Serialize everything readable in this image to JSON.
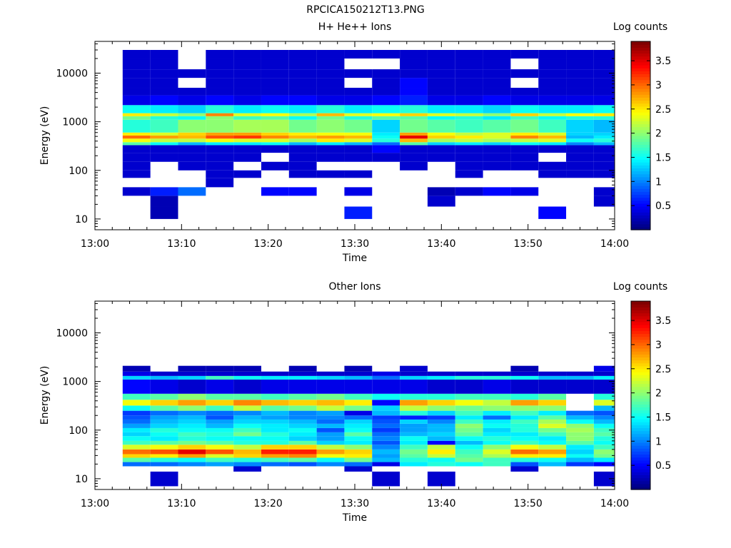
{
  "figure_title": "RPCICA150212T13.PNG",
  "chart_data": [
    {
      "type": "heatmap",
      "title": "H+ He++ Ions",
      "xlabel": "Time",
      "ylabel": "Energy (eV)",
      "colorbar_label": "Log counts",
      "x_ticks": [
        "13:00",
        "13:10",
        "13:20",
        "13:30",
        "13:40",
        "13:50",
        "14:00"
      ],
      "xlim_minutes": [
        0,
        60
      ],
      "y_scale": "log",
      "ylim": [
        6,
        45000
      ],
      "y_ticks": [
        10,
        100,
        1000,
        10000
      ],
      "y_tick_labels": [
        "10",
        "100",
        "1000",
        "10000"
      ],
      "clim": [
        0,
        3.9
      ],
      "colorbar_ticks": [
        0.5,
        1,
        1.5,
        2,
        2.5,
        3,
        3.5
      ],
      "colorbar_tick_labels": [
        "0.5",
        "1",
        "1.5",
        "2",
        "2.5",
        "3",
        "3.5"
      ],
      "colormap": "jet",
      "time_bins_minutes": [
        3.2,
        6.4,
        9.6,
        12.8,
        16.0,
        19.2,
        22.4,
        25.6,
        28.8,
        32.0,
        35.2,
        38.4,
        41.6,
        44.8,
        48.0,
        51.2,
        54.4,
        57.6,
        60.8
      ],
      "energy_bins_eV": [
        10,
        18,
        30,
        45,
        70,
        100,
        150,
        230,
        330,
        380,
        450,
        520,
        600,
        1100,
        1300,
        1500,
        2200,
        3500,
        5000,
        8000,
        12000,
        20000,
        30000
      ],
      "z_log_counts": [
        [
          null,
          0.2,
          null,
          null,
          null,
          null,
          null,
          null,
          0.6,
          null,
          null,
          null,
          null,
          null,
          null,
          0.5,
          null,
          null
        ],
        [
          null,
          0.2,
          null,
          null,
          null,
          null,
          null,
          null,
          null,
          null,
          null,
          0.3,
          null,
          null,
          null,
          null,
          null,
          0.3
        ],
        [
          0.3,
          0.6,
          0.9,
          null,
          null,
          0.5,
          0.5,
          null,
          0.4,
          null,
          null,
          0.2,
          0.3,
          0.5,
          0.4,
          null,
          null,
          0.3
        ],
        [
          null,
          null,
          null,
          0.3,
          null,
          null,
          null,
          null,
          null,
          null,
          null,
          null,
          null,
          null,
          null,
          null,
          null,
          null
        ],
        [
          0.3,
          null,
          null,
          0.3,
          0.3,
          null,
          0.3,
          0.3,
          0.3,
          null,
          null,
          null,
          0.3,
          null,
          null,
          0.3,
          0.3,
          0.3
        ],
        [
          0.3,
          null,
          0.3,
          0.3,
          null,
          0.3,
          0.3,
          null,
          null,
          null,
          0.3,
          null,
          0.3,
          0.3,
          0.3,
          0.3,
          0.3,
          0.3
        ],
        [
          0.3,
          0.3,
          0.3,
          0.3,
          0.3,
          null,
          0.3,
          0.3,
          0.3,
          0.3,
          0.3,
          0.3,
          0.3,
          0.3,
          0.3,
          null,
          0.3,
          0.3
        ],
        [
          0.3,
          0.3,
          0.3,
          0.3,
          0.3,
          0.3,
          0.3,
          0.3,
          0.3,
          0.5,
          0.3,
          0.3,
          0.3,
          0.3,
          0.3,
          0.3,
          0.3,
          0.3
        ],
        [
          1.8,
          1.5,
          1.2,
          1.4,
          1.4,
          1.5,
          1.2,
          1.4,
          1.2,
          0.9,
          1.8,
          1.3,
          1.4,
          1.3,
          1.5,
          1.4,
          1.0,
          1.2
        ],
        [
          2.4,
          2.2,
          2.2,
          2.4,
          2.3,
          2.3,
          2.1,
          2.5,
          2.3,
          1.6,
          2.7,
          2.1,
          2.2,
          2.1,
          2.2,
          2.3,
          1.5,
          1.6
        ],
        [
          3.0,
          2.8,
          2.7,
          3.1,
          3.2,
          2.9,
          2.7,
          2.8,
          2.7,
          1.5,
          3.5,
          2.6,
          2.5,
          2.3,
          2.9,
          2.7,
          1.2,
          1.4
        ],
        [
          2.5,
          2.3,
          2.6,
          2.8,
          2.8,
          2.6,
          2.5,
          2.4,
          2.4,
          1.4,
          2.8,
          2.4,
          2.2,
          2.3,
          2.5,
          2.3,
          1.3,
          1.3
        ],
        [
          1.6,
          1.7,
          2.0,
          2.0,
          2.1,
          2.1,
          1.9,
          2.0,
          1.9,
          1.3,
          1.9,
          1.8,
          1.7,
          1.8,
          1.9,
          1.7,
          1.3,
          1.2
        ],
        [
          1.9,
          1.6,
          1.5,
          2.0,
          1.7,
          1.8,
          1.5,
          1.9,
          1.6,
          1.8,
          1.8,
          1.5,
          1.6,
          1.4,
          1.7,
          1.5,
          1.6,
          1.6
        ],
        [
          2.5,
          2.2,
          2.0,
          2.9,
          2.3,
          2.4,
          2.1,
          2.7,
          2.3,
          2.4,
          2.6,
          2.3,
          2.2,
          2.0,
          2.6,
          2.2,
          2.4,
          2.5
        ],
        [
          1.5,
          1.4,
          1.3,
          1.6,
          1.4,
          1.5,
          1.4,
          1.6,
          1.4,
          1.5,
          1.6,
          1.4,
          1.4,
          1.3,
          1.5,
          1.4,
          1.4,
          1.5
        ],
        [
          0.4,
          0.5,
          0.4,
          0.5,
          0.4,
          0.5,
          0.5,
          0.4,
          0.4,
          0.5,
          0.6,
          0.4,
          0.4,
          0.5,
          0.4,
          0.4,
          0.4,
          0.4
        ],
        [
          0.3,
          0.3,
          0.3,
          0.3,
          0.3,
          0.3,
          0.3,
          0.3,
          0.3,
          0.3,
          0.5,
          0.3,
          0.3,
          0.3,
          0.3,
          0.3,
          0.3,
          0.3
        ],
        [
          0.3,
          0.3,
          null,
          0.3,
          0.3,
          0.3,
          0.3,
          0.3,
          null,
          0.3,
          0.5,
          0.3,
          0.3,
          0.3,
          null,
          0.3,
          0.3,
          0.3
        ],
        [
          0.3,
          0.3,
          0.3,
          0.3,
          0.3,
          0.3,
          0.3,
          0.3,
          0.3,
          0.3,
          0.3,
          0.3,
          0.3,
          0.3,
          0.3,
          0.3,
          0.3,
          0.3
        ],
        [
          0.3,
          0.3,
          null,
          0.3,
          0.3,
          0.3,
          0.3,
          0.3,
          null,
          null,
          0.3,
          0.3,
          0.3,
          0.3,
          null,
          0.3,
          0.3,
          0.3
        ],
        [
          0.3,
          0.3,
          null,
          0.3,
          0.3,
          0.3,
          0.3,
          0.3,
          0.3,
          0.3,
          0.3,
          0.3,
          0.3,
          0.3,
          0.3,
          0.3,
          0.3,
          0.3
        ]
      ]
    },
    {
      "type": "heatmap",
      "title": "Other Ions",
      "xlabel": "Time",
      "ylabel": "Energy (eV)",
      "colorbar_label": "Log counts",
      "x_ticks": [
        "13:00",
        "13:10",
        "13:20",
        "13:30",
        "13:40",
        "13:50",
        "14:00"
      ],
      "xlim_minutes": [
        0,
        60
      ],
      "y_scale": "log",
      "ylim": [
        6,
        45000
      ],
      "y_ticks": [
        10,
        100,
        1000,
        10000
      ],
      "y_tick_labels": [
        "10",
        "100",
        "1000",
        "10000"
      ],
      "clim": [
        0,
        3.9
      ],
      "colorbar_ticks": [
        0.5,
        1,
        1.5,
        2,
        2.5,
        3,
        3.5
      ],
      "colorbar_tick_labels": [
        "0.5",
        "1",
        "1.5",
        "2",
        "2.5",
        "3",
        "3.5"
      ],
      "colormap": "jet",
      "time_bins_minutes": [
        3.2,
        6.4,
        9.6,
        12.8,
        16.0,
        19.2,
        22.4,
        25.6,
        28.8,
        32.0,
        35.2,
        38.4,
        41.6,
        44.8,
        48.0,
        51.2,
        54.4,
        57.6,
        60.8
      ],
      "energy_bins_eV": [
        7,
        14,
        18,
        22,
        27,
        32,
        40,
        50,
        60,
        75,
        90,
        110,
        135,
        165,
        200,
        250,
        320,
        420,
        560,
        1100,
        1300,
        1600,
        2100
      ],
      "z_log_counts": [
        [
          null,
          0.3,
          null,
          null,
          null,
          null,
          null,
          null,
          null,
          0.3,
          null,
          0.3,
          null,
          null,
          null,
          null,
          null,
          0.3
        ],
        [
          null,
          null,
          null,
          null,
          0.3,
          null,
          null,
          null,
          0.3,
          null,
          null,
          null,
          null,
          null,
          0.3,
          null,
          null,
          null
        ],
        [
          0.9,
          0.9,
          1.0,
          1.1,
          1.0,
          0.9,
          0.8,
          1.0,
          0.9,
          0.4,
          1.4,
          1.6,
          1.5,
          1.7,
          0.8,
          1.2,
          0.7,
          0.5
        ],
        [
          1.8,
          1.6,
          1.5,
          1.7,
          1.6,
          1.7,
          1.8,
          1.5,
          1.9,
          1.2,
          1.6,
          1.5,
          1.9,
          1.7,
          1.6,
          1.5,
          1.2,
          1.4
        ],
        [
          2.6,
          2.5,
          2.8,
          2.3,
          2.6,
          2.8,
          2.9,
          2.4,
          2.5,
          1.1,
          1.8,
          2.2,
          1.8,
          2.1,
          2.5,
          2.5,
          1.5,
          1.9
        ],
        [
          3.0,
          3.1,
          3.5,
          3.1,
          2.7,
          3.3,
          3.3,
          2.8,
          2.6,
          1.2,
          1.9,
          2.5,
          1.7,
          2.3,
          3.0,
          2.8,
          1.3,
          2.0
        ],
        [
          2.3,
          2.4,
          2.6,
          2.4,
          2.2,
          2.6,
          2.6,
          2.2,
          2.0,
          1.0,
          1.7,
          2.2,
          1.5,
          2.0,
          2.4,
          2.2,
          1.4,
          1.7
        ],
        [
          1.7,
          1.8,
          1.9,
          1.8,
          1.6,
          1.6,
          1.8,
          1.3,
          1.4,
          0.8,
          1.4,
          0.5,
          1.2,
          1.5,
          1.7,
          1.5,
          1.8,
          1.5
        ],
        [
          1.5,
          1.4,
          1.6,
          1.5,
          1.5,
          1.5,
          1.3,
          1.1,
          1.5,
          1.0,
          1.5,
          1.2,
          1.5,
          1.6,
          1.5,
          1.4,
          2.0,
          1.6
        ],
        [
          1.3,
          1.5,
          1.7,
          1.6,
          1.9,
          1.6,
          1.4,
          1.1,
          1.8,
          0.9,
          1.2,
          1.3,
          1.8,
          1.4,
          1.4,
          1.7,
          2.0,
          1.8
        ],
        [
          1.4,
          1.6,
          1.5,
          1.5,
          1.7,
          1.4,
          1.5,
          0.8,
          1.5,
          0.7,
          1.1,
          1.2,
          1.9,
          1.3,
          1.6,
          1.9,
          2.1,
          1.7
        ],
        [
          1.1,
          1.3,
          1.4,
          1.2,
          1.5,
          1.4,
          1.3,
          1.2,
          1.4,
          0.9,
          1.1,
          1.2,
          2.0,
          1.5,
          1.6,
          2.3,
          2.0,
          1.5
        ],
        [
          0.9,
          1.2,
          1.3,
          1.1,
          1.3,
          1.3,
          1.2,
          0.9,
          1.3,
          0.8,
          1.3,
          1.0,
          1.7,
          1.4,
          1.7,
          2.1,
          1.5,
          1.2
        ],
        [
          0.8,
          1.1,
          1.2,
          0.8,
          1.2,
          1.1,
          1.0,
          1.0,
          0.9,
          0.7,
          0.6,
          0.7,
          1.4,
          0.9,
          1.4,
          1.8,
          1.2,
          1.0
        ],
        [
          0.7,
          0.9,
          1.0,
          0.9,
          1.0,
          1.2,
          1.0,
          1.1,
          0.4,
          1.2,
          1.6,
          1.3,
          1.7,
          1.4,
          1.7,
          1.4,
          0.9,
          0.8
        ],
        [
          1.5,
          1.8,
          2.0,
          1.7,
          2.2,
          1.8,
          1.9,
          2.2,
          1.9,
          1.3,
          2.2,
          2.0,
          1.9,
          2.0,
          2.0,
          2.0,
          null,
          1.2
        ],
        [
          2.4,
          2.6,
          2.8,
          2.6,
          2.9,
          2.7,
          2.6,
          2.7,
          2.5,
          0.5,
          2.8,
          2.6,
          2.4,
          2.2,
          2.8,
          2.6,
          null,
          2.3
        ],
        [
          1.7,
          1.8,
          2.0,
          1.8,
          1.8,
          1.7,
          1.8,
          1.9,
          1.7,
          1.5,
          1.6,
          1.6,
          1.7,
          1.7,
          1.6,
          1.8,
          null,
          1.6
        ],
        [
          0.5,
          0.4,
          0.3,
          0.4,
          0.3,
          0.4,
          0.4,
          0.4,
          0.4,
          0.4,
          0.4,
          0.3,
          0.3,
          0.4,
          0.3,
          0.3,
          0.3,
          0.3
        ],
        [
          1.3,
          1.2,
          1.3,
          1.7,
          1.5,
          1.4,
          1.4,
          1.3,
          1.2,
          0.9,
          1.3,
          1.4,
          1.6,
          1.6,
          1.5,
          1.2,
          1.2,
          1.4
        ],
        [
          0.4,
          0.3,
          0.3,
          0.3,
          0.3,
          0.3,
          0.3,
          0.3,
          0.3,
          0.4,
          0.3,
          0.3,
          0.3,
          0.3,
          0.3,
          0.3,
          0.3,
          0.3
        ],
        [
          0.2,
          null,
          0.2,
          0.2,
          0.2,
          null,
          0.2,
          null,
          0.2,
          null,
          0.3,
          null,
          null,
          null,
          0.2,
          null,
          null,
          0.4
        ]
      ]
    }
  ]
}
